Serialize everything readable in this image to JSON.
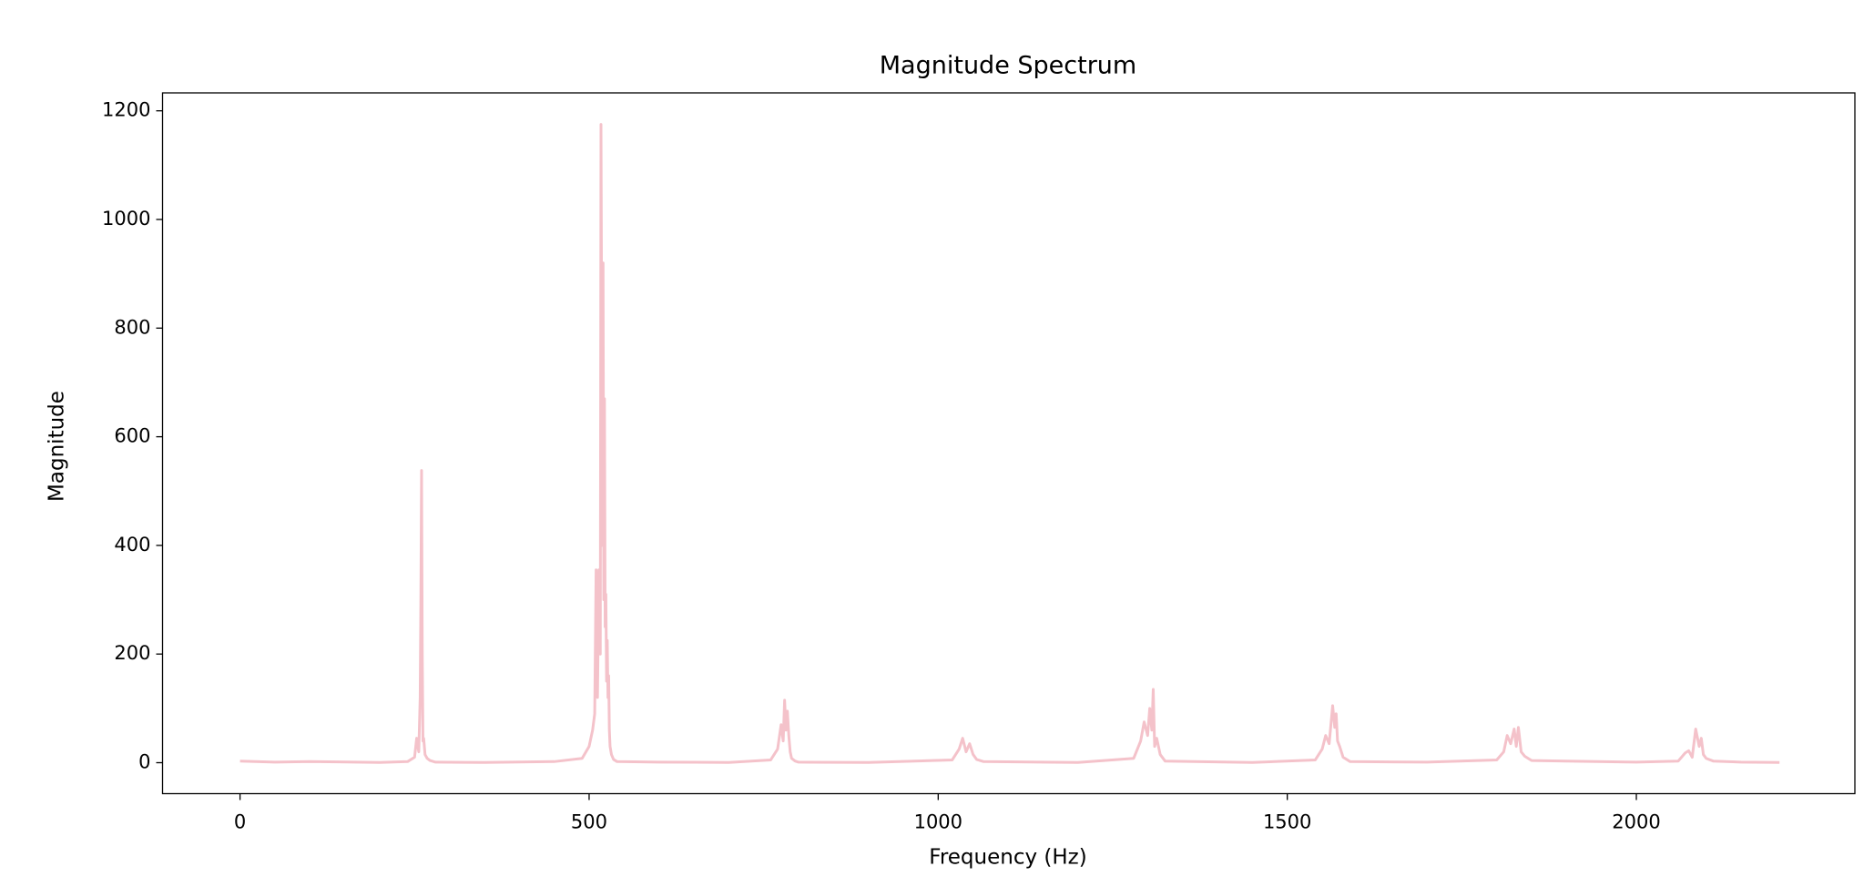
{
  "chart_data": {
    "type": "line",
    "title": "Magnitude Spectrum",
    "x_label": "Frequency (Hz)",
    "y_label": "Magnitude",
    "x": [
      0,
      50,
      100,
      200,
      240,
      250,
      253,
      256,
      258,
      259,
      260,
      261,
      262,
      263,
      265,
      268,
      272,
      280,
      350,
      450,
      490,
      500,
      505,
      508,
      510,
      512,
      514,
      516,
      517,
      518,
      519,
      520,
      521,
      522,
      523,
      524,
      525,
      526,
      527,
      528,
      529,
      530,
      532,
      535,
      540,
      600,
      700,
      760,
      770,
      775,
      778,
      780,
      782,
      784,
      786,
      788,
      790,
      795,
      800,
      900,
      1020,
      1030,
      1035,
      1040,
      1045,
      1050,
      1055,
      1065,
      1200,
      1280,
      1290,
      1295,
      1300,
      1303,
      1306,
      1308,
      1310,
      1313,
      1318,
      1325,
      1450,
      1540,
      1550,
      1555,
      1560,
      1565,
      1568,
      1570,
      1572,
      1575,
      1580,
      1590,
      1700,
      1800,
      1810,
      1815,
      1820,
      1825,
      1828,
      1831,
      1835,
      1840,
      1850,
      1900,
      2000,
      2060,
      2070,
      2075,
      2080,
      2085,
      2090,
      2093,
      2096,
      2100,
      2110,
      2150,
      2205
    ],
    "series": [
      {
        "color": "#f4c2ca",
        "values": [
          3,
          1,
          2,
          0.5,
          2,
          10,
          45,
          20,
          120,
          300,
          538,
          200,
          40,
          45,
          15,
          8,
          4,
          1,
          0.5,
          2,
          8,
          30,
          60,
          90,
          355,
          120,
          355,
          200,
          1175,
          800,
          400,
          920,
          300,
          670,
          250,
          310,
          150,
          225,
          120,
          160,
          60,
          30,
          15,
          6,
          2,
          1,
          0.5,
          5,
          25,
          70,
          40,
          115,
          60,
          95,
          50,
          20,
          8,
          3,
          1,
          0.5,
          5,
          25,
          45,
          20,
          35,
          15,
          6,
          2,
          0.5,
          8,
          40,
          75,
          50,
          100,
          60,
          135,
          30,
          45,
          15,
          3,
          0.5,
          5,
          25,
          50,
          35,
          105,
          65,
          90,
          40,
          30,
          10,
          2,
          1,
          5,
          20,
          50,
          35,
          62,
          30,
          65,
          20,
          12,
          4,
          3,
          1,
          3,
          18,
          22,
          10,
          62,
          30,
          45,
          15,
          8,
          3,
          1,
          0.5
        ]
      }
    ],
    "xlim": [
      -111,
      2313
    ],
    "ylim": [
      -57,
      1233
    ],
    "xticks": [
      0,
      500,
      1000,
      1500,
      2000
    ],
    "yticks": [
      0,
      200,
      400,
      600,
      800,
      1000,
      1200
    ]
  }
}
